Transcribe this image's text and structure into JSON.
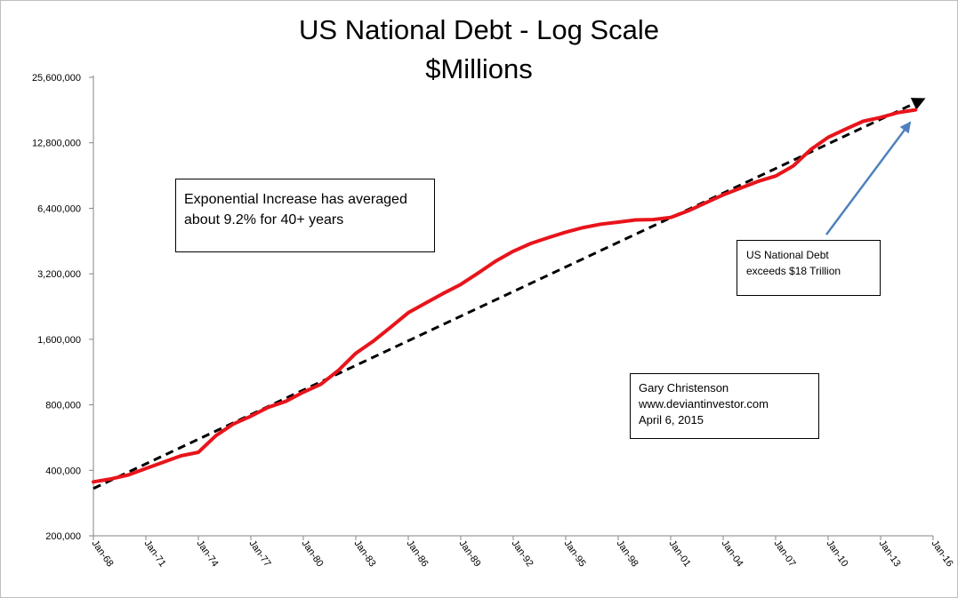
{
  "chart_data": {
    "type": "line",
    "title": "US National Debt - Log Scale",
    "subtitle": "$Millions",
    "xlabel": "",
    "ylabel": "",
    "yscale": "log2",
    "ylim": [
      200000,
      25600000
    ],
    "yticks": [
      200000,
      400000,
      800000,
      1600000,
      3200000,
      6400000,
      12800000,
      25600000
    ],
    "ytick_labels": [
      "200,000",
      "400,000",
      "800,000",
      "1,600,000",
      "3,200,000",
      "6,400,000",
      "12,800,000",
      "25,600,000"
    ],
    "xlim": [
      1968,
      2016
    ],
    "xticks": [
      1968,
      1971,
      1974,
      1977,
      1980,
      1983,
      1986,
      1989,
      1992,
      1995,
      1998,
      2001,
      2004,
      2007,
      2010,
      2013,
      2016
    ],
    "xtick_labels": [
      "Jan-68",
      "Jan-71",
      "Jan-74",
      "Jan-77",
      "Jan-80",
      "Jan-83",
      "Jan-86",
      "Jan-89",
      "Jan-92",
      "Jan-95",
      "Jan-98",
      "Jan-01",
      "Jan-04",
      "Jan-07",
      "Jan-10",
      "Jan-13",
      "Jan-16"
    ],
    "series": [
      {
        "name": "US National Debt",
        "color": "#e8141b",
        "style": "solid",
        "x": [
          1968,
          1969,
          1970,
          1971,
          1972,
          1973,
          1974,
          1975,
          1976,
          1977,
          1978,
          1979,
          1980,
          1981,
          1982,
          1983,
          1984,
          1985,
          1986,
          1987,
          1988,
          1989,
          1990,
          1991,
          1992,
          1993,
          1994,
          1995,
          1996,
          1997,
          1998,
          1999,
          2000,
          2001,
          2002,
          2003,
          2004,
          2005,
          2006,
          2007,
          2008,
          2009,
          2010,
          2011,
          2012,
          2013,
          2014,
          2015
        ],
        "y": [
          354000,
          365000,
          381000,
          408000,
          436000,
          466000,
          484000,
          577000,
          653000,
          709000,
          780000,
          830000,
          914000,
          995000,
          1150000,
          1380000,
          1570000,
          1820000,
          2120000,
          2350000,
          2600000,
          2860000,
          3230000,
          3660000,
          4060000,
          4410000,
          4690000,
          4970000,
          5220000,
          5410000,
          5530000,
          5660000,
          5680000,
          5810000,
          6230000,
          6780000,
          7380000,
          7930000,
          8510000,
          9010000,
          10020000,
          11910000,
          13560000,
          14790000,
          16070000,
          16740000,
          17630000,
          18150000
        ]
      },
      {
        "name": "Exponential trend 9.2%",
        "color": "#000000",
        "style": "dashed",
        "x": [
          1968,
          2015.5
        ],
        "y": [
          330000,
          20400000
        ]
      }
    ],
    "annotations": {
      "trend_box": [
        "Exponential  Increase has averaged",
        "about 9.2% for 40+ years"
      ],
      "exceeds_box": [
        "US National Debt",
        "exceeds $18 Trillion"
      ],
      "author_box": [
        "Gary Christenson",
        "www.deviantinvestor.com",
        "April 6, 2015"
      ]
    },
    "annotation_arrow_color": "#4f81bd"
  }
}
